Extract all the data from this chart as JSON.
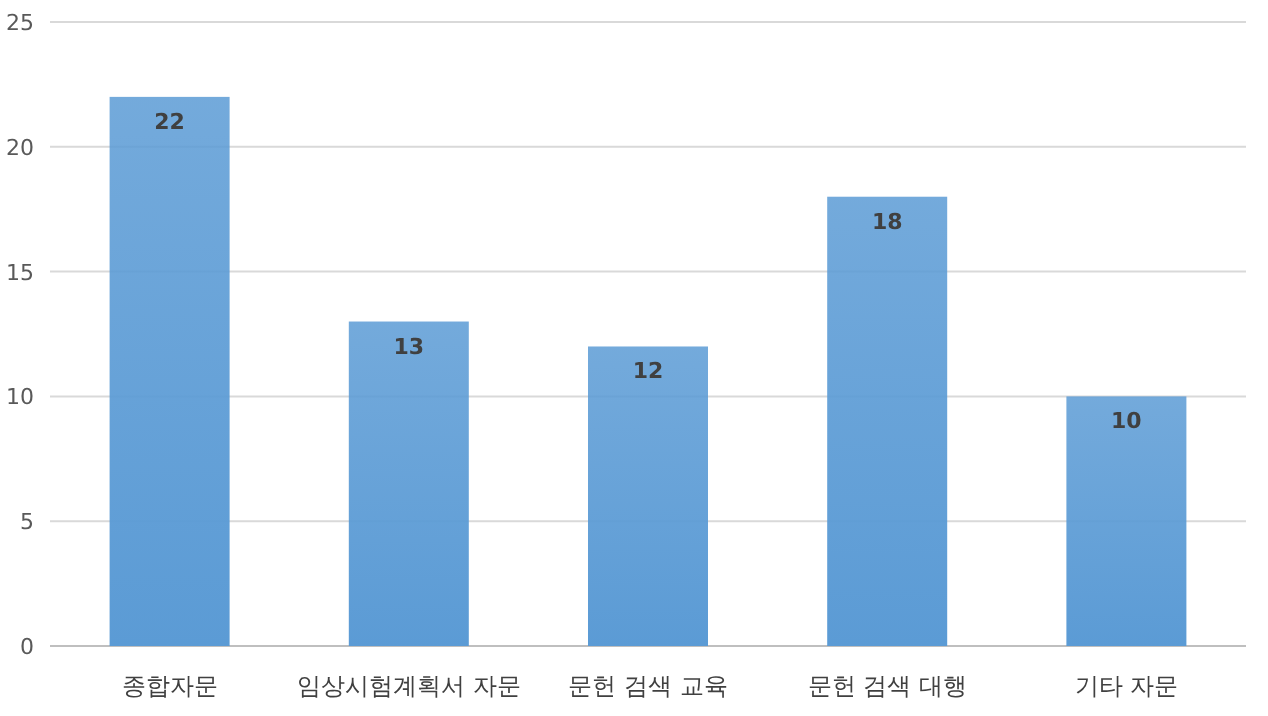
{
  "chart_data": {
    "type": "bar",
    "categories": [
      "종합자문",
      "임상시험계획서 자문",
      "문헌 검색 교육",
      "문헌 검색 대행",
      "기타 자문"
    ],
    "values": [
      22,
      13,
      12,
      18,
      10
    ],
    "color": "#5b9bd5",
    "ylim": [
      0,
      25
    ],
    "yticks": [
      0,
      5,
      10,
      15,
      20,
      25
    ],
    "grid": "y",
    "data_labels": true
  }
}
